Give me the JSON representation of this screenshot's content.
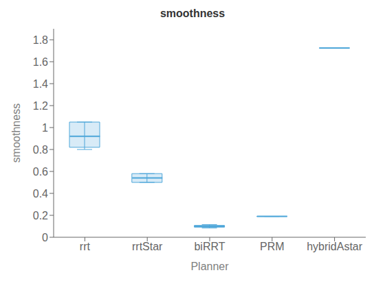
{
  "chart_data": {
    "type": "box",
    "title": "smoothness",
    "xlabel": "Planner",
    "ylabel": "smoothness",
    "categories": [
      "rrt",
      "rrtStar",
      "biRRT",
      "PRM",
      "hybridAstar"
    ],
    "boxes": [
      {
        "whislo": 0.8,
        "q1": 0.82,
        "med": 0.92,
        "q3": 1.05,
        "whishi": 1.05
      },
      {
        "whislo": 0.5,
        "q1": 0.5,
        "med": 0.54,
        "q3": 0.58,
        "whishi": 0.58
      },
      {
        "whislo": 0.085,
        "q1": 0.092,
        "med": 0.1,
        "q3": 0.108,
        "whishi": 0.115
      },
      {
        "whislo": 0.19,
        "q1": 0.19,
        "med": 0.19,
        "q3": 0.19,
        "whishi": 0.19
      },
      {
        "whislo": 1.725,
        "q1": 1.725,
        "med": 1.725,
        "q3": 1.725,
        "whishi": 1.725
      }
    ],
    "color": "#4da6d9",
    "ylim": [
      0,
      1.9
    ],
    "yticks": [
      0,
      0.2,
      0.4,
      0.6,
      0.8,
      1.0,
      1.2,
      1.4,
      1.6,
      1.8
    ],
    "grid": false
  }
}
